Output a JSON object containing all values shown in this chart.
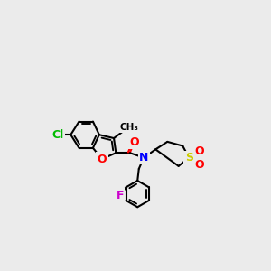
{
  "bg_color": "#ebebeb",
  "bond_color": "#000000",
  "atom_colors": {
    "O": "#ff0000",
    "N": "#0000ff",
    "S": "#cccc00",
    "Cl": "#00bb00",
    "F": "#cc00cc",
    "C": "#000000"
  },
  "figsize": [
    3.0,
    3.0
  ],
  "dpi": 100
}
